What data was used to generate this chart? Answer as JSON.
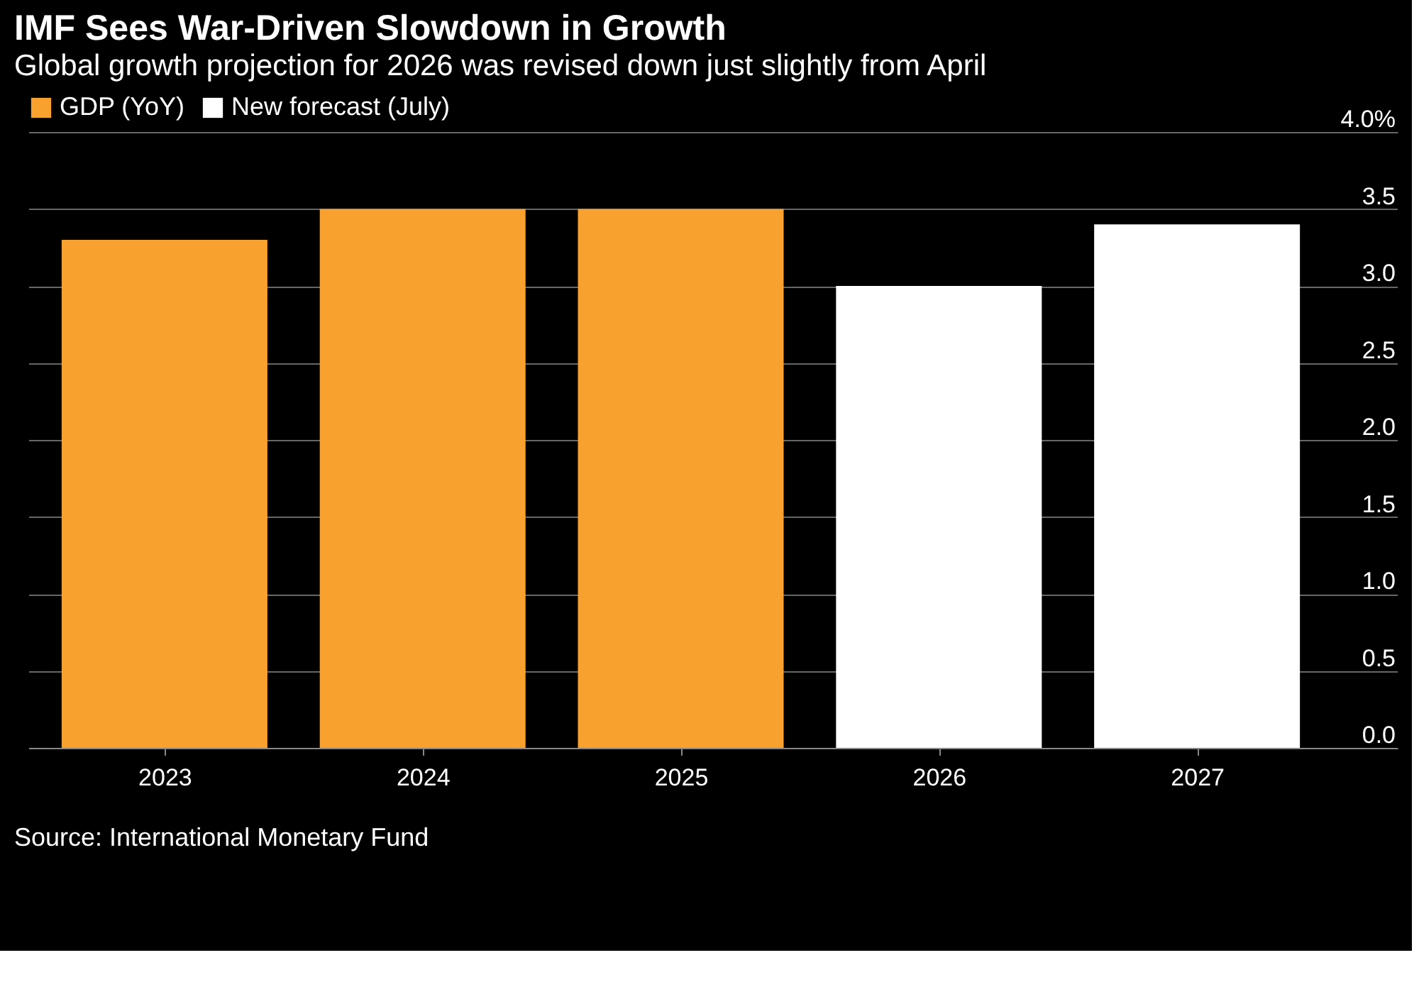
{
  "chart_data": {
    "type": "bar",
    "title": "IMF Sees War-Driven Slowdown in Growth",
    "subtitle": "Global growth projection for 2026 was revised down just slightly from April",
    "categories": [
      "2023",
      "2024",
      "2025",
      "2026",
      "2027"
    ],
    "series": [
      {
        "name": "GDP (YoY)",
        "color": "#f9a12e",
        "values": [
          3.3,
          3.5,
          3.5,
          null,
          null
        ]
      },
      {
        "name": "New forecast (July)",
        "color": "#ffffff",
        "values": [
          null,
          null,
          null,
          3.0,
          3.4
        ]
      }
    ],
    "ylim": [
      0,
      4
    ],
    "yticks": [
      {
        "value": 0,
        "label": "0.0"
      },
      {
        "value": 0.5,
        "label": "0.5"
      },
      {
        "value": 1,
        "label": "1.0"
      },
      {
        "value": 1.5,
        "label": "1.5"
      },
      {
        "value": 2,
        "label": "2.0"
      },
      {
        "value": 2.5,
        "label": "2.5"
      },
      {
        "value": 3,
        "label": "3.0"
      },
      {
        "value": 3.5,
        "label": "3.5"
      },
      {
        "value": 4,
        "label": "4.0%"
      }
    ],
    "grid": "y",
    "legend": "top left",
    "annotations": [
      "Source: International Monetary Fund"
    ]
  }
}
